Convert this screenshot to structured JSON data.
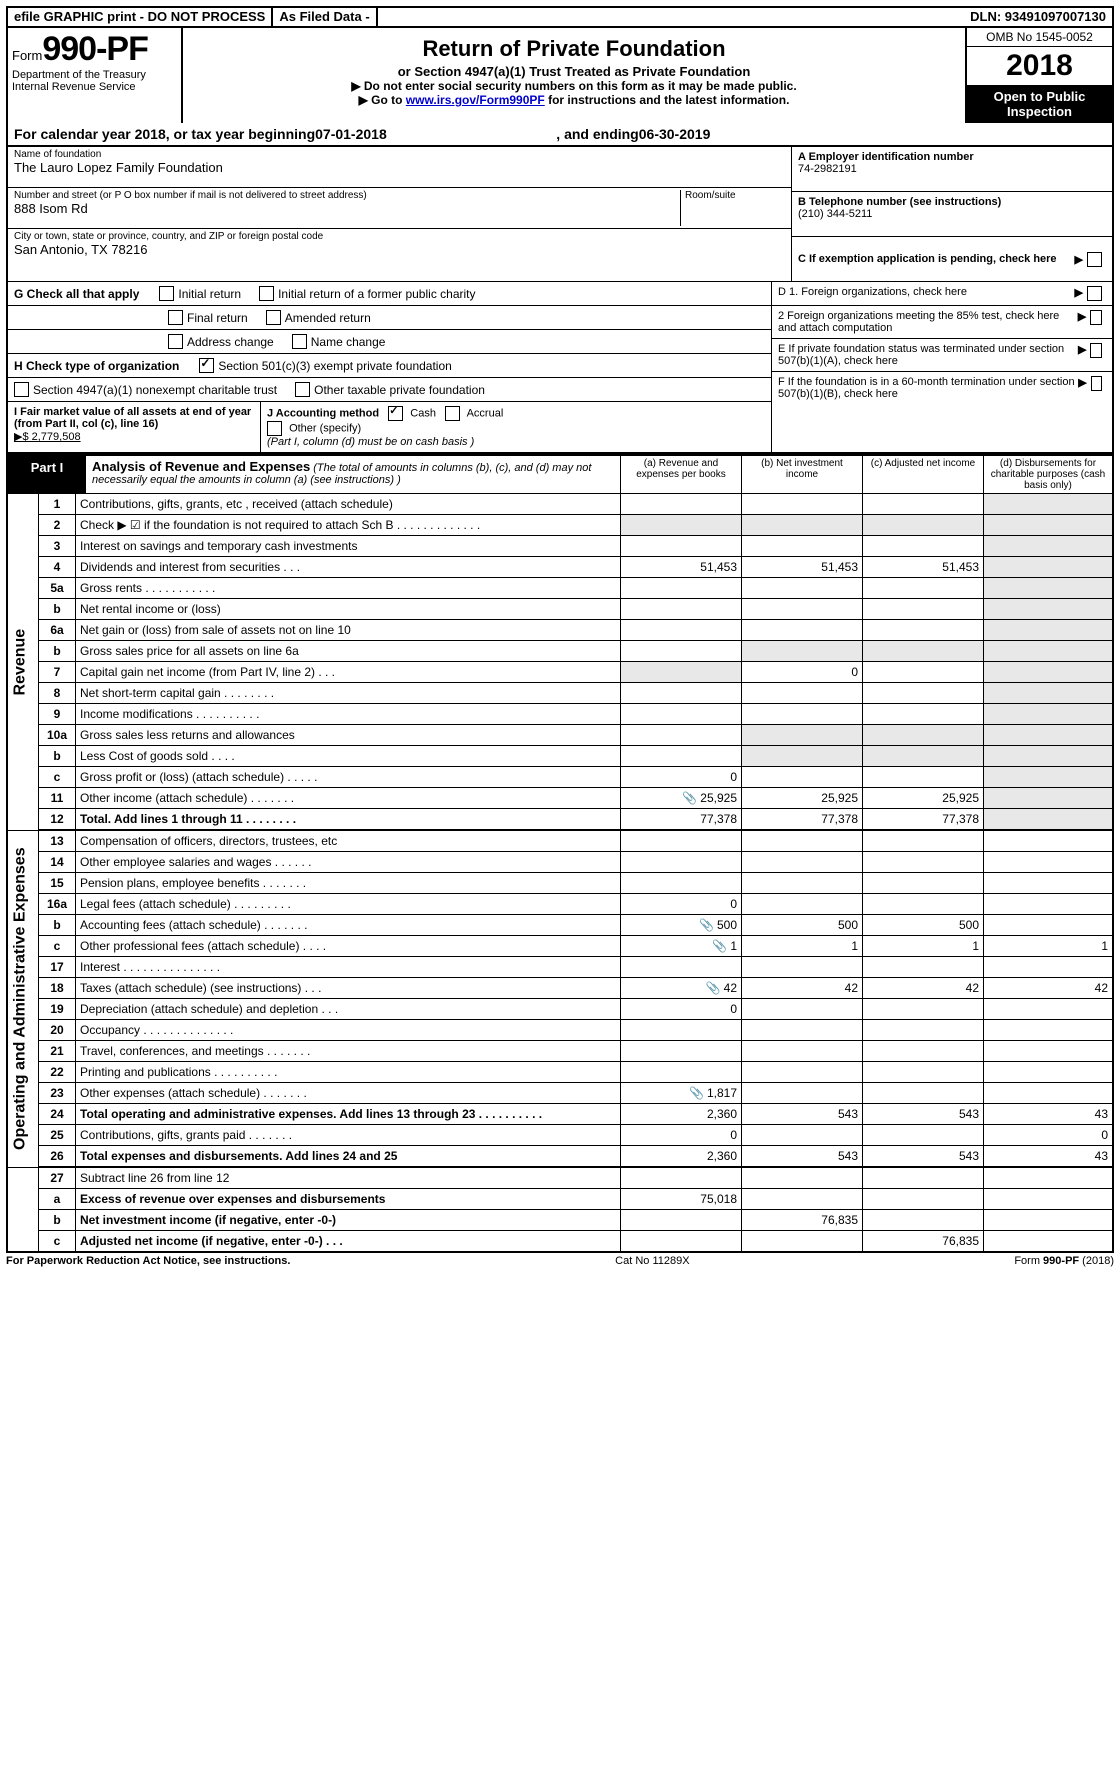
{
  "top_bar": {
    "efile": "efile GRAPHIC print - DO NOT PROCESS",
    "as_filed": "As Filed Data -",
    "dln": "DLN: 93491097007130"
  },
  "header": {
    "form_prefix": "Form",
    "form_number": "990-PF",
    "dept": "Department of the Treasury",
    "irs": "Internal Revenue Service",
    "title": "Return of Private Foundation",
    "subtitle": "or Section 4947(a)(1) Trust Treated as Private Foundation",
    "line1": "▶ Do not enter social security numbers on this form as it may be made public.",
    "line2_pre": "▶ Go to ",
    "line2_link": "www.irs.gov/Form990PF",
    "line2_post": " for instructions and the latest information.",
    "omb": "OMB No 1545-0052",
    "year": "2018",
    "open_public": "Open to Public Inspection"
  },
  "cal_year": {
    "pre": "For calendar year 2018, or tax year beginning ",
    "start": "07-01-2018",
    "mid": ", and ending ",
    "end": "06-30-2019"
  },
  "info": {
    "name_label": "Name of foundation",
    "name": "The Lauro Lopez Family Foundation",
    "addr_label": "Number and street (or P O  box number if mail is not delivered to street address)",
    "room_label": "Room/suite",
    "addr": "888 Isom Rd",
    "city_label": "City or town, state or province, country, and ZIP or foreign postal code",
    "city": "San Antonio, TX  78216",
    "a_label": "A Employer identification number",
    "a_val": "74-2982191",
    "b_label": "B Telephone number (see instructions)",
    "b_val": "(210) 344-5211",
    "c_label": "C If exemption application is pending, check here"
  },
  "checks": {
    "g_label": "G Check all that apply",
    "g1": "Initial return",
    "g2": "Initial return of a former public charity",
    "g3": "Final return",
    "g4": "Amended return",
    "g5": "Address change",
    "g6": "Name change",
    "h_label": "H Check type of organization",
    "h1": "Section 501(c)(3) exempt private foundation",
    "h2": "Section 4947(a)(1) nonexempt charitable trust",
    "h3": "Other taxable private foundation",
    "d1": "D 1. Foreign organizations, check here",
    "d2": "2 Foreign organizations meeting the 85% test, check here and attach computation",
    "e": "E  If private foundation status was terminated under section 507(b)(1)(A), check here",
    "f": "F  If the foundation is in a 60-month termination under section 507(b)(1)(B), check here",
    "i_label": "I Fair market value of all assets at end of year (from Part II, col  (c), line 16)",
    "i_val": "▶$  2,779,508",
    "j_label": "J Accounting method",
    "j1": "Cash",
    "j2": "Accrual",
    "j3": "Other (specify)",
    "j_note": "(Part I, column (d) must be on cash basis )"
  },
  "part1": {
    "label": "Part I",
    "title": "Analysis of Revenue and Expenses",
    "note": "(The total of amounts in columns (b), (c), and (d) may not necessarily equal the amounts in column (a) (see instructions) )",
    "col_a": "(a) Revenue and expenses per books",
    "col_b": "(b) Net investment income",
    "col_c": "(c) Adjusted net income",
    "col_d": "(d) Disbursements for charitable purposes (cash basis only)"
  },
  "side": {
    "revenue": "Revenue",
    "expenses": "Operating and Administrative Expenses"
  },
  "rows": [
    {
      "n": "1",
      "d": "Contributions, gifts, grants, etc , received (attach schedule)"
    },
    {
      "n": "2",
      "d": "Check ▶ ☑ if the foundation is not required to attach Sch B        .   .   .   .   .   .   .   .   .   .   .   .   .",
      "shade_all": true
    },
    {
      "n": "3",
      "d": "Interest on savings and temporary cash investments"
    },
    {
      "n": "4",
      "d": "Dividends and interest from securities   .   .   .",
      "a": "51,453",
      "b": "51,453",
      "c": "51,453"
    },
    {
      "n": "5a",
      "d": "Gross rents   .   .   .   .   .   .   .   .   .   .   ."
    },
    {
      "n": "b",
      "d": "Net rental income or (loss)  "
    },
    {
      "n": "6a",
      "d": "Net gain or (loss) from sale of assets not on line 10"
    },
    {
      "n": "b",
      "d": "Gross sales price for all assets on line 6a",
      "shade_bcd": true
    },
    {
      "n": "7",
      "d": "Capital gain net income (from Part IV, line 2)   .   .   .",
      "b": "0",
      "shade_a": true
    },
    {
      "n": "8",
      "d": "Net short-term capital gain   .   .   .   .   .   .   .   ."
    },
    {
      "n": "9",
      "d": "Income modifications   .   .   .   .   .   .   .   .   .   ."
    },
    {
      "n": "10a",
      "d": "Gross sales less returns and allowances",
      "shade_bcd": true
    },
    {
      "n": "b",
      "d": "Less  Cost of goods sold   .   .   .   .",
      "shade_bcd": true
    },
    {
      "n": "c",
      "d": "Gross profit or (loss) (attach schedule)   .   .   .   .   .",
      "a": "0"
    },
    {
      "n": "11",
      "d": "Other income (attach schedule)   .   .   .   .   .   .   .",
      "a": "25,925",
      "b": "25,925",
      "c": "25,925",
      "icon": true
    },
    {
      "n": "12",
      "d": "Total. Add lines 1 through 11   .   .   .   .   .   .   .   .",
      "a": "77,378",
      "b": "77,378",
      "c": "77,378",
      "bold": true,
      "thick": true
    },
    {
      "n": "13",
      "d": "Compensation of officers, directors, trustees, etc"
    },
    {
      "n": "14",
      "d": "Other employee salaries and wages   .   .   .   .   .   ."
    },
    {
      "n": "15",
      "d": "Pension plans, employee benefits   .   .   .   .   .   .   ."
    },
    {
      "n": "16a",
      "d": "Legal fees (attach schedule)   .   .   .   .   .   .   .   .   .",
      "a": "0"
    },
    {
      "n": "b",
      "d": "Accounting fees (attach schedule)   .   .   .   .   .   .   .",
      "a": "500",
      "b": "500",
      "c": "500",
      "icon": true
    },
    {
      "n": "c",
      "d": "Other professional fees (attach schedule)   .   .   .   .",
      "a": "1",
      "b": "1",
      "c": "1",
      "dd": "1",
      "icon": true
    },
    {
      "n": "17",
      "d": "Interest   .   .   .   .   .   .   .   .   .   .   .   .   .   .   ."
    },
    {
      "n": "18",
      "d": "Taxes (attach schedule) (see instructions)   .   .   .",
      "a": "42",
      "b": "42",
      "c": "42",
      "dd": "42",
      "icon": true
    },
    {
      "n": "19",
      "d": "Depreciation (attach schedule) and depletion   .   .   .",
      "a": "0"
    },
    {
      "n": "20",
      "d": "Occupancy   .   .   .   .   .   .   .   .   .   .   .   .   .   ."
    },
    {
      "n": "21",
      "d": "Travel, conferences, and meetings   .   .   .   .   .   .   ."
    },
    {
      "n": "22",
      "d": "Printing and publications   .   .   .   .   .   .   .   .   .   ."
    },
    {
      "n": "23",
      "d": "Other expenses (attach schedule)   .   .   .   .   .   .   .",
      "a": "1,817",
      "icon": true
    },
    {
      "n": "24",
      "d": "Total operating and administrative expenses. Add lines 13 through 23   .   .   .   .   .   .   .   .   .   .",
      "a": "2,360",
      "b": "543",
      "c": "543",
      "dd": "43",
      "bold": true
    },
    {
      "n": "25",
      "d": "Contributions, gifts, grants paid   .   .   .   .   .   .   .",
      "a": "0",
      "dd": "0"
    },
    {
      "n": "26",
      "d": "Total expenses and disbursements. Add lines 24 and 25",
      "a": "2,360",
      "b": "543",
      "c": "543",
      "dd": "43",
      "bold": true,
      "thick": true
    },
    {
      "n": "27",
      "d": "Subtract line 26 from line 12"
    },
    {
      "n": "a",
      "d": "Excess of revenue over expenses and disbursements",
      "a": "75,018",
      "bold": true
    },
    {
      "n": "b",
      "d": "Net investment income (if negative, enter -0-)",
      "b": "76,835",
      "bold": true
    },
    {
      "n": "c",
      "d": "Adjusted net income (if negative, enter -0-)   .   .   .",
      "c": "76,835",
      "bold": true
    }
  ],
  "footer": {
    "pra": "For Paperwork Reduction Act Notice, see instructions.",
    "cat": "Cat  No  11289X",
    "form": "Form 990-PF (2018)"
  }
}
